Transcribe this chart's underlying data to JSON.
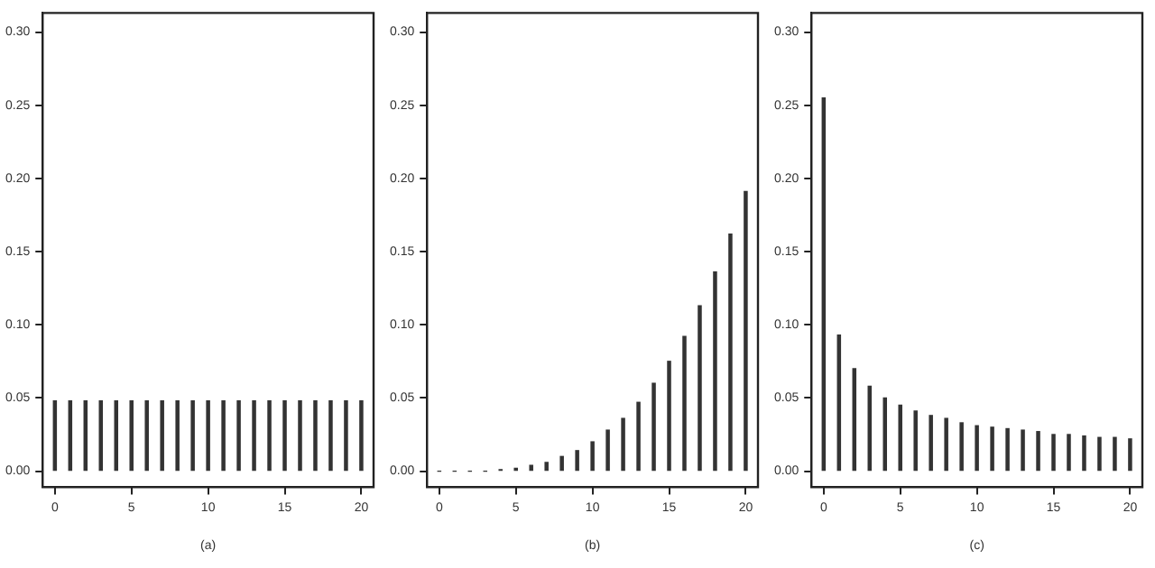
{
  "chart_data": [
    {
      "type": "bar",
      "xlabel": "(a)",
      "x": [
        0,
        1,
        2,
        3,
        4,
        5,
        6,
        7,
        8,
        9,
        10,
        11,
        12,
        13,
        14,
        15,
        16,
        17,
        18,
        19,
        20
      ],
      "color": "#333333",
      "values": [
        0.048,
        0.048,
        0.048,
        0.048,
        0.048,
        0.048,
        0.048,
        0.048,
        0.048,
        0.048,
        0.048,
        0.048,
        0.048,
        0.048,
        0.048,
        0.048,
        0.048,
        0.048,
        0.048,
        0.048,
        0.048
      ],
      "xlim": [
        -0.8,
        20.8
      ],
      "xticks": [
        0,
        5,
        10,
        15,
        20
      ],
      "ylim": [
        -0.011,
        0.313
      ],
      "yticks": [
        {
          "value": 0,
          "label": "0.00"
        },
        0.05,
        {
          "value": 0.1,
          "label": "0.10"
        },
        0.15,
        {
          "value": 0.2,
          "label": "0.20"
        },
        0.25,
        {
          "value": 0.3,
          "label": "0.30"
        }
      ],
      "grid": false,
      "legend": false
    },
    {
      "type": "bar",
      "xlabel": "(b)",
      "x": [
        0,
        1,
        2,
        3,
        4,
        5,
        6,
        7,
        8,
        9,
        10,
        11,
        12,
        13,
        14,
        15,
        16,
        17,
        18,
        19,
        20
      ],
      "color": "#333333",
      "values": [
        0,
        0,
        0,
        0,
        0.001,
        0.002,
        0.004,
        0.006,
        0.01,
        0.014,
        0.02,
        0.028,
        0.036,
        0.047,
        0.06,
        0.075,
        0.092,
        0.113,
        0.136,
        0.162,
        0.191
      ],
      "xlim": [
        -0.8,
        20.8
      ],
      "xticks": [
        0,
        5,
        10,
        15,
        20
      ],
      "ylim": [
        -0.011,
        0.313
      ],
      "yticks": [
        {
          "value": 0,
          "label": "0.00"
        },
        0.05,
        {
          "value": 0.1,
          "label": "0.10"
        },
        0.15,
        {
          "value": 0.2,
          "label": "0.20"
        },
        0.25,
        {
          "value": 0.3,
          "label": "0.30"
        }
      ],
      "grid": false,
      "legend": false
    },
    {
      "type": "bar",
      "xlabel": "(c)",
      "x": [
        0,
        1,
        2,
        3,
        4,
        5,
        6,
        7,
        8,
        9,
        10,
        11,
        12,
        13,
        14,
        15,
        16,
        17,
        18,
        19,
        20
      ],
      "color": "#333333",
      "values": [
        0.255,
        0.093,
        0.07,
        0.058,
        0.05,
        0.045,
        0.041,
        0.038,
        0.036,
        0.033,
        0.031,
        0.03,
        0.029,
        0.028,
        0.027,
        0.025,
        0.025,
        0.024,
        0.023,
        0.023,
        0.022
      ],
      "xlim": [
        -0.8,
        20.8
      ],
      "xticks": [
        0,
        5,
        10,
        15,
        20
      ],
      "ylim": [
        -0.011,
        0.313
      ],
      "yticks": [
        {
          "value": 0,
          "label": "0.00"
        },
        0.05,
        {
          "value": 0.1,
          "label": "0.10"
        },
        0.15,
        {
          "value": 0.2,
          "label": "0.20"
        },
        0.25,
        {
          "value": 0.3,
          "label": "0.30"
        }
      ],
      "grid": false,
      "legend": false
    }
  ]
}
